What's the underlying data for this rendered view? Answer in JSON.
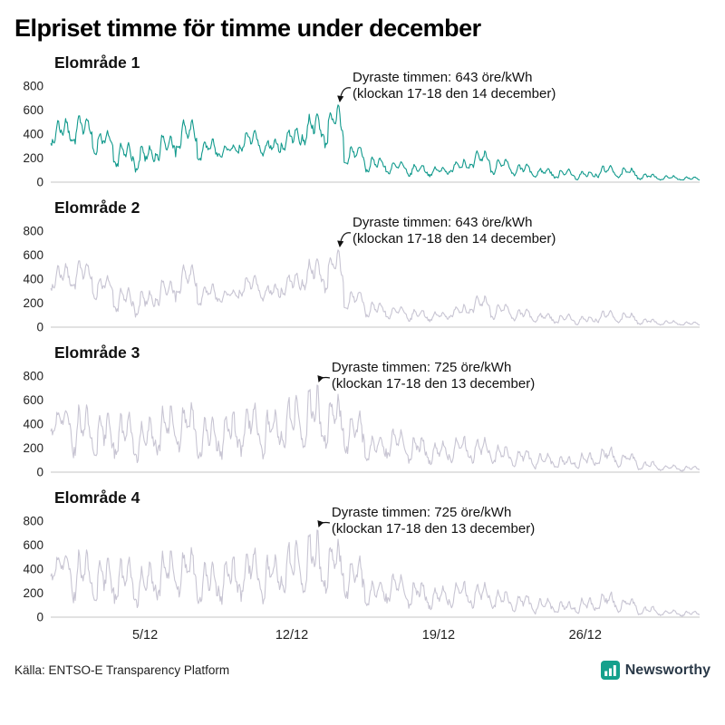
{
  "title": "Elpriset timme för timme under december",
  "source": "Källa: ENTSO-E Transparency Platform",
  "brand": {
    "name": "Newsworthy",
    "color": "#14a08c"
  },
  "colors": {
    "series1": "#129a8d",
    "series_gray": "#c8c5d3",
    "axis": "#c6c6c6",
    "text": "#222"
  },
  "xticks": [
    {
      "day": 5,
      "label": "5/12"
    },
    {
      "day": 12,
      "label": "12/12"
    },
    {
      "day": 19,
      "label": "19/12"
    },
    {
      "day": 26,
      "label": "26/12"
    }
  ],
  "chart_data": [
    {
      "type": "line",
      "title": "Elområde 1",
      "color": "#129a8d",
      "ylim": [
        0,
        800
      ],
      "yticks": [
        0,
        200,
        400,
        600,
        800
      ],
      "annotation": {
        "line1": "Dyraste timmen: 643 öre/kWh",
        "line2": "(klockan 17-18 den 14 december)",
        "peak_value": 643,
        "peak_day": 14,
        "peak_hour": 17
      },
      "daily_range": [
        [
          280,
          530
        ],
        [
          300,
          560
        ],
        [
          210,
          430
        ],
        [
          90,
          330
        ],
        [
          60,
          310
        ],
        [
          150,
          420
        ],
        [
          240,
          520
        ],
        [
          150,
          360
        ],
        [
          200,
          310
        ],
        [
          240,
          430
        ],
        [
          200,
          360
        ],
        [
          250,
          450
        ],
        [
          300,
          570
        ],
        [
          260,
          643
        ],
        [
          120,
          310
        ],
        [
          70,
          210
        ],
        [
          60,
          170
        ],
        [
          40,
          150
        ],
        [
          40,
          130
        ],
        [
          60,
          190
        ],
        [
          100,
          260
        ],
        [
          60,
          190
        ],
        [
          40,
          150
        ],
        [
          30,
          120
        ],
        [
          20,
          110
        ],
        [
          15,
          90
        ],
        [
          30,
          140
        ],
        [
          25,
          120
        ],
        [
          15,
          70
        ],
        [
          10,
          55
        ],
        [
          10,
          45
        ]
      ]
    },
    {
      "type": "line",
      "title": "Elområde 2",
      "color": "#c8c5d3",
      "ylim": [
        0,
        800
      ],
      "yticks": [
        0,
        200,
        400,
        600,
        800
      ],
      "annotation": {
        "line1": "Dyraste timmen: 643 öre/kWh",
        "line2": "(klockan 17-18 den 14 december)",
        "peak_value": 643,
        "peak_day": 14,
        "peak_hour": 17
      },
      "daily_range": [
        [
          280,
          530
        ],
        [
          300,
          560
        ],
        [
          210,
          430
        ],
        [
          90,
          330
        ],
        [
          60,
          310
        ],
        [
          150,
          420
        ],
        [
          240,
          520
        ],
        [
          150,
          360
        ],
        [
          200,
          310
        ],
        [
          240,
          430
        ],
        [
          200,
          360
        ],
        [
          250,
          450
        ],
        [
          300,
          570
        ],
        [
          260,
          643
        ],
        [
          120,
          310
        ],
        [
          70,
          210
        ],
        [
          60,
          170
        ],
        [
          40,
          150
        ],
        [
          40,
          130
        ],
        [
          60,
          190
        ],
        [
          100,
          260
        ],
        [
          60,
          190
        ],
        [
          40,
          150
        ],
        [
          30,
          120
        ],
        [
          20,
          110
        ],
        [
          15,
          90
        ],
        [
          30,
          140
        ],
        [
          25,
          120
        ],
        [
          15,
          70
        ],
        [
          10,
          55
        ],
        [
          10,
          45
        ]
      ]
    },
    {
      "type": "line",
      "title": "Elområde 3",
      "color": "#c8c5d3",
      "ylim": [
        0,
        800
      ],
      "yticks": [
        0,
        200,
        400,
        600,
        800
      ],
      "annotation": {
        "line1": "Dyraste timmen: 725 öre/kWh",
        "line2": "(klockan 17-18 den 13 december)",
        "peak_value": 725,
        "peak_day": 13,
        "peak_hour": 17
      },
      "daily_range": [
        [
          290,
          520
        ],
        [
          90,
          560
        ],
        [
          60,
          490
        ],
        [
          60,
          500
        ],
        [
          50,
          460
        ],
        [
          90,
          550
        ],
        [
          140,
          580
        ],
        [
          60,
          460
        ],
        [
          80,
          500
        ],
        [
          100,
          580
        ],
        [
          80,
          520
        ],
        [
          140,
          640
        ],
        [
          110,
          725
        ],
        [
          150,
          650
        ],
        [
          100,
          510
        ],
        [
          60,
          310
        ],
        [
          80,
          360
        ],
        [
          50,
          310
        ],
        [
          40,
          260
        ],
        [
          50,
          300
        ],
        [
          60,
          290
        ],
        [
          40,
          230
        ],
        [
          30,
          190
        ],
        [
          20,
          160
        ],
        [
          15,
          130
        ],
        [
          20,
          160
        ],
        [
          40,
          210
        ],
        [
          30,
          160
        ],
        [
          10,
          90
        ],
        [
          10,
          60
        ],
        [
          5,
          50
        ]
      ]
    },
    {
      "type": "line",
      "title": "Elområde 4",
      "color": "#c8c5d3",
      "ylim": [
        0,
        800
      ],
      "yticks": [
        0,
        200,
        400,
        600,
        800
      ],
      "annotation": {
        "line1": "Dyraste timmen: 725 öre/kWh",
        "line2": "(klockan 17-18 den 13 december)",
        "peak_value": 725,
        "peak_day": 13,
        "peak_hour": 17
      },
      "daily_range": [
        [
          290,
          520
        ],
        [
          90,
          560
        ],
        [
          60,
          490
        ],
        [
          60,
          500
        ],
        [
          50,
          460
        ],
        [
          90,
          550
        ],
        [
          140,
          580
        ],
        [
          60,
          460
        ],
        [
          80,
          500
        ],
        [
          100,
          580
        ],
        [
          80,
          520
        ],
        [
          140,
          640
        ],
        [
          110,
          725
        ],
        [
          150,
          650
        ],
        [
          100,
          510
        ],
        [
          60,
          310
        ],
        [
          80,
          360
        ],
        [
          50,
          310
        ],
        [
          40,
          260
        ],
        [
          50,
          300
        ],
        [
          60,
          290
        ],
        [
          40,
          230
        ],
        [
          30,
          190
        ],
        [
          20,
          160
        ],
        [
          15,
          130
        ],
        [
          20,
          160
        ],
        [
          40,
          210
        ],
        [
          30,
          160
        ],
        [
          10,
          90
        ],
        [
          10,
          60
        ],
        [
          5,
          50
        ]
      ]
    }
  ]
}
